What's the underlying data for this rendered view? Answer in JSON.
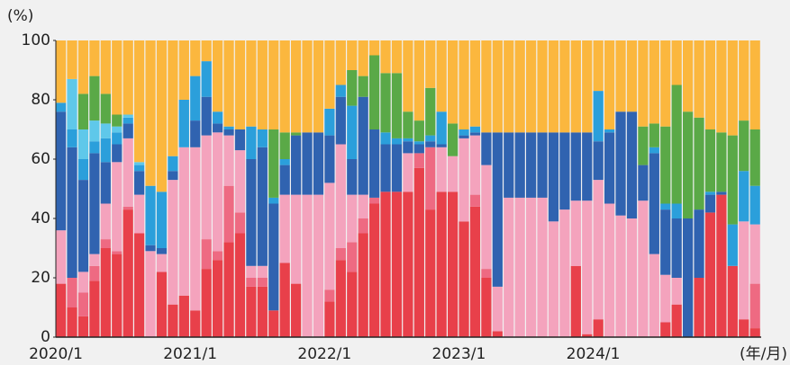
{
  "chart_data": {
    "type": "stacked_bar",
    "y_label": "(%)",
    "x_label": "(年/月)",
    "categories": [
      "2020/1",
      null,
      null,
      null,
      null,
      null,
      null,
      null,
      null,
      null,
      null,
      null,
      "2021/1",
      null,
      null,
      null,
      null,
      null,
      null,
      null,
      null,
      null,
      null,
      null,
      "2022/1",
      null,
      null,
      null,
      null,
      null,
      null,
      null,
      null,
      null,
      null,
      null,
      "2023/1",
      null,
      null,
      null,
      null,
      null,
      null,
      null,
      null,
      null,
      null,
      null,
      "2024/1",
      null,
      null,
      null,
      null,
      null,
      null,
      null,
      null,
      null,
      null,
      null,
      null,
      null,
      null
    ],
    "series": [
      {
        "color": "#e8404a",
        "values": [
          18,
          10,
          7,
          19,
          30,
          28,
          43,
          35,
          0,
          22,
          11,
          14,
          9,
          23,
          26,
          32,
          35,
          17,
          17,
          9,
          25,
          18,
          0,
          0,
          12,
          26,
          22,
          35,
          45,
          49,
          49,
          49,
          57,
          43,
          49,
          49,
          39,
          44,
          20,
          2,
          0,
          0,
          0,
          0,
          0,
          0,
          24,
          1,
          6,
          0,
          0,
          0,
          0,
          0,
          5,
          11,
          0,
          20,
          42,
          48,
          24,
          6,
          3
        ]
      },
      {
        "color": "#ee6a82",
        "values": [
          0,
          10,
          8,
          5,
          3,
          1,
          1,
          0,
          0,
          0,
          0,
          0,
          0,
          10,
          3,
          19,
          7,
          3,
          3,
          0,
          0,
          0,
          0,
          0,
          4,
          4,
          10,
          5,
          2,
          0,
          0,
          0,
          5,
          21,
          0,
          0,
          0,
          4,
          3,
          0,
          0,
          0,
          0,
          0,
          0,
          0,
          0,
          0,
          0,
          0,
          0,
          0,
          0,
          0,
          0,
          0,
          0,
          0,
          0,
          0,
          0,
          0,
          15
        ]
      },
      {
        "color": "#f4a3bd",
        "values": [
          18,
          0,
          7,
          4,
          12,
          30,
          23,
          13,
          29,
          6,
          42,
          50,
          55,
          35,
          40,
          17,
          21,
          4,
          4,
          0,
          23,
          30,
          48,
          48,
          36,
          35,
          16,
          8,
          0,
          0,
          0,
          13,
          0,
          0,
          15,
          12,
          28,
          20,
          35,
          15,
          47,
          47,
          47,
          47,
          39,
          43,
          22,
          45,
          47,
          45,
          41,
          40,
          46,
          28,
          16,
          9,
          0,
          0,
          0,
          0,
          0,
          33,
          20
        ]
      },
      {
        "color": "#3063b0",
        "values": [
          40,
          44,
          31,
          34,
          14,
          6,
          5,
          8,
          2,
          2,
          3,
          0,
          9,
          13,
          3,
          2,
          7,
          36,
          40,
          36,
          10,
          20,
          21,
          21,
          16,
          16,
          12,
          33,
          23,
          16,
          16,
          4,
          3,
          2,
          1,
          0,
          1,
          1,
          11,
          52,
          22,
          22,
          22,
          22,
          30,
          26,
          23,
          23,
          13,
          24,
          35,
          36,
          12,
          34,
          22,
          20,
          40,
          23,
          6,
          1,
          0,
          0,
          0
        ]
      },
      {
        "color": "#2b9fdb",
        "values": [
          3,
          6,
          7,
          4,
          8,
          4,
          2,
          2,
          20,
          19,
          5,
          16,
          15,
          12,
          4,
          1,
          0,
          11,
          6,
          2,
          2,
          0,
          0,
          0,
          9,
          4,
          18,
          0,
          0,
          4,
          2,
          1,
          1,
          2,
          11,
          0,
          2,
          2,
          0,
          0,
          0,
          0,
          0,
          0,
          0,
          0,
          0,
          0,
          17,
          1,
          0,
          0,
          0,
          2,
          2,
          5,
          0,
          0,
          1,
          0,
          14,
          17,
          13
        ]
      },
      {
        "color": "#5fc8ea",
        "values": [
          0,
          17,
          10,
          7,
          5,
          2,
          1,
          1,
          0,
          0,
          0,
          0,
          0,
          0,
          0,
          0,
          0,
          0,
          0,
          0,
          0,
          0,
          0,
          0,
          0,
          0,
          0,
          0,
          0,
          0,
          0,
          0,
          0,
          0,
          0,
          0,
          0,
          0,
          0,
          0,
          0,
          0,
          0,
          0,
          0,
          0,
          0,
          0,
          0,
          0,
          0,
          0,
          0,
          0,
          0,
          0,
          0,
          0,
          0,
          0,
          0,
          0,
          0
        ]
      },
      {
        "color": "#5aa947",
        "values": [
          0,
          0,
          12,
          15,
          10,
          4,
          0,
          0,
          0,
          0,
          0,
          0,
          0,
          0,
          0,
          0,
          0,
          0,
          0,
          23,
          9,
          1,
          0,
          0,
          0,
          0,
          12,
          7,
          25,
          20,
          22,
          9,
          7,
          16,
          0,
          11,
          0,
          0,
          0,
          0,
          0,
          0,
          0,
          0,
          0,
          0,
          0,
          0,
          0,
          0,
          0,
          0,
          13,
          8,
          26,
          40,
          36,
          31,
          21,
          20,
          30,
          17,
          19
        ]
      },
      {
        "color": "#fbb73e",
        "values": [
          21,
          13,
          18,
          12,
          18,
          25,
          25,
          41,
          49,
          51,
          39,
          20,
          12,
          7,
          24,
          29,
          30,
          29,
          30,
          30,
          31,
          31,
          31,
          31,
          23,
          15,
          10,
          12,
          5,
          11,
          11,
          24,
          27,
          16,
          24,
          28,
          30,
          29,
          31,
          31,
          31,
          31,
          31,
          31,
          31,
          31,
          31,
          31,
          17,
          30,
          24,
          24,
          29,
          28,
          29,
          15,
          24,
          26,
          30,
          31,
          32,
          27,
          30
        ]
      }
    ],
    "ylim": [
      0,
      100
    ],
    "yticks": [
      0,
      20,
      40,
      60,
      80,
      100
    ]
  }
}
